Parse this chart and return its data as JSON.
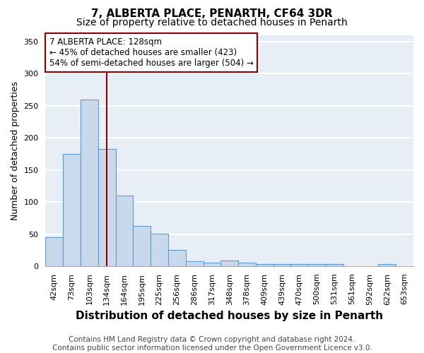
{
  "title": "7, ALBERTA PLACE, PENARTH, CF64 3DR",
  "subtitle": "Size of property relative to detached houses in Penarth",
  "xlabel": "Distribution of detached houses by size in Penarth",
  "ylabel": "Number of detached properties",
  "categories": [
    "42sqm",
    "73sqm",
    "103sqm",
    "134sqm",
    "164sqm",
    "195sqm",
    "225sqm",
    "256sqm",
    "286sqm",
    "317sqm",
    "348sqm",
    "378sqm",
    "409sqm",
    "439sqm",
    "470sqm",
    "500sqm",
    "531sqm",
    "561sqm",
    "592sqm",
    "622sqm",
    "653sqm"
  ],
  "values": [
    45,
    175,
    260,
    183,
    110,
    63,
    51,
    25,
    8,
    5,
    9,
    5,
    3,
    3,
    3,
    3,
    3,
    0,
    0,
    3,
    0
  ],
  "bar_color": "#c8d9eb",
  "bar_edge_color": "#5b9bd5",
  "red_line_index": 3,
  "ylim": [
    0,
    360
  ],
  "yticks": [
    0,
    50,
    100,
    150,
    200,
    250,
    300,
    350
  ],
  "annotation_line1": "7 ALBERTA PLACE: 128sqm",
  "annotation_line2": "← 45% of detached houses are smaller (423)",
  "annotation_line3": "54% of semi-detached houses are larger (504) →",
  "footer_line1": "Contains HM Land Registry data © Crown copyright and database right 2024.",
  "footer_line2": "Contains public sector information licensed under the Open Government Licence v3.0.",
  "background_color": "#e8eef5",
  "grid_color": "#ffffff",
  "title_fontsize": 11,
  "subtitle_fontsize": 10,
  "xlabel_fontsize": 11,
  "ylabel_fontsize": 9,
  "tick_fontsize": 8,
  "annotation_fontsize": 8.5,
  "footer_fontsize": 7.5
}
